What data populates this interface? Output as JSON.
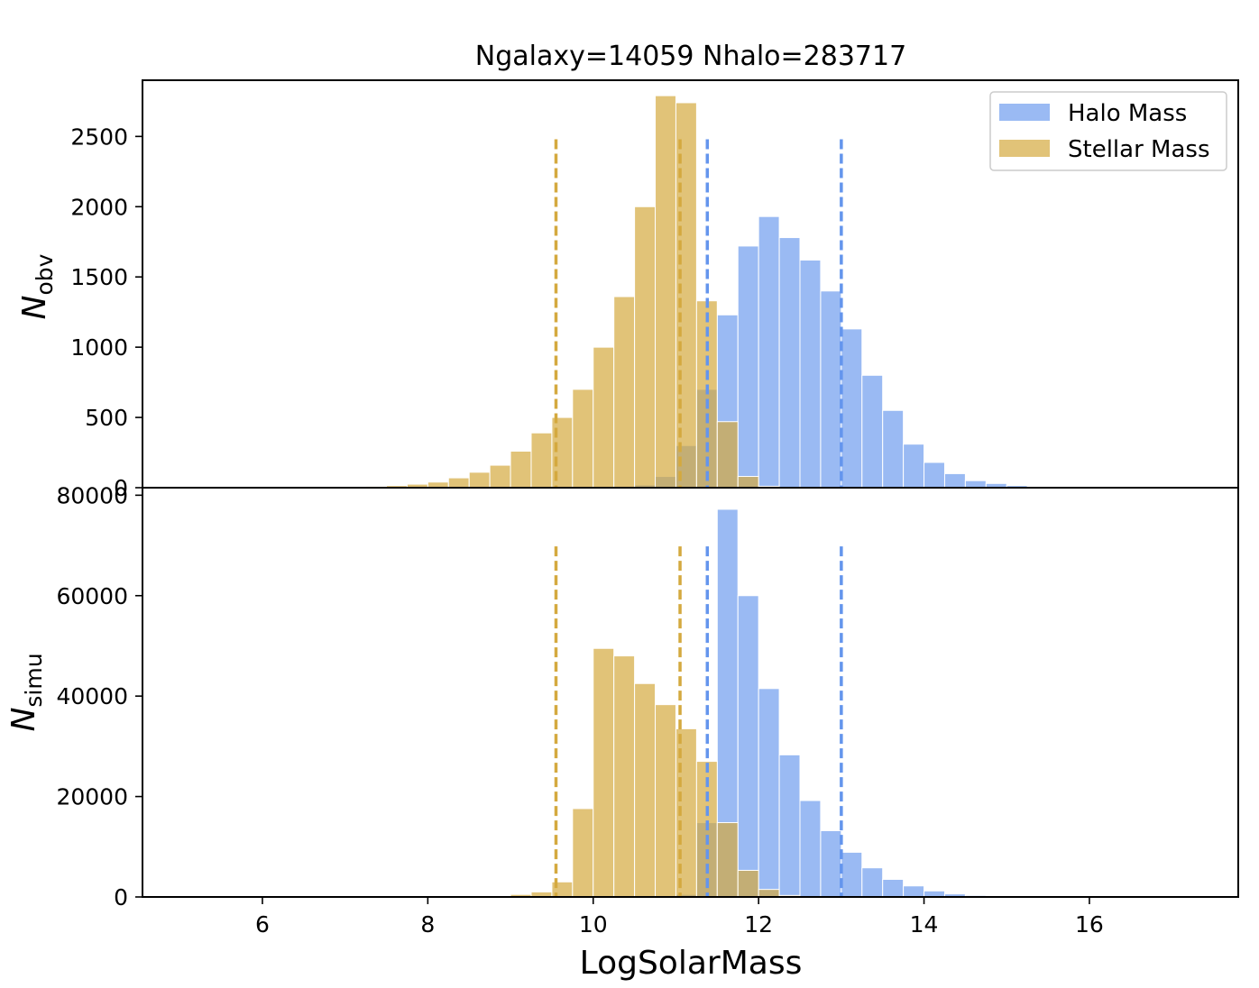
{
  "chart_data": {
    "title": "Ngalaxy=14059 Nhalo=283717",
    "xlabel": "LogSolarMass",
    "xlim": [
      4.55,
      17.8
    ],
    "xticks": [
      "6",
      "8",
      "10",
      "12",
      "14",
      "16"
    ],
    "bin_width": 0.25,
    "legend": {
      "placement": "top-right",
      "entries": [
        "Halo Mass",
        "Stellar Mass"
      ]
    },
    "colors": {
      "halo": "#6495ed",
      "stellar": "#d4a93f",
      "halo_line": "#6495ed",
      "stellar_line": "#d4a93f"
    },
    "vlines": {
      "stellar": [
        9.55,
        11.05
      ],
      "halo": [
        11.38,
        13.0
      ]
    },
    "panels": [
      {
        "type": "bar",
        "ylabel_main": "N",
        "ylabel_sub": "obv",
        "ylim": [
          0,
          2900
        ],
        "yticks": [
          "0",
          "500",
          "1000",
          "1500",
          "2000",
          "2500"
        ],
        "vline_top": 2480,
        "series": [
          {
            "name": "Halo Mass",
            "bins": [
              [
                10.0,
                5
              ],
              [
                10.25,
                10
              ],
              [
                10.5,
                20
              ],
              [
                10.75,
                80
              ],
              [
                11.0,
                300
              ],
              [
                11.25,
                700
              ],
              [
                11.5,
                1230
              ],
              [
                11.75,
                1720
              ],
              [
                12.0,
                1930
              ],
              [
                12.25,
                1780
              ],
              [
                12.5,
                1620
              ],
              [
                12.75,
                1400
              ],
              [
                13.0,
                1130
              ],
              [
                13.25,
                800
              ],
              [
                13.5,
                550
              ],
              [
                13.75,
                310
              ],
              [
                14.0,
                180
              ],
              [
                14.25,
                100
              ],
              [
                14.5,
                50
              ],
              [
                14.75,
                30
              ],
              [
                15.0,
                15
              ],
              [
                15.25,
                8
              ]
            ]
          },
          {
            "name": "Stellar Mass",
            "bins": [
              [
                6.25,
                3
              ],
              [
                6.5,
                5
              ],
              [
                6.75,
                5
              ],
              [
                7.0,
                8
              ],
              [
                7.25,
                10
              ],
              [
                7.5,
                15
              ],
              [
                7.75,
                25
              ],
              [
                8.0,
                40
              ],
              [
                8.25,
                70
              ],
              [
                8.5,
                110
              ],
              [
                8.75,
                160
              ],
              [
                9.0,
                260
              ],
              [
                9.25,
                390
              ],
              [
                9.5,
                500
              ],
              [
                9.75,
                700
              ],
              [
                10.0,
                1000
              ],
              [
                10.25,
                1360
              ],
              [
                10.5,
                2000
              ],
              [
                10.75,
                2790
              ],
              [
                11.0,
                2740
              ],
              [
                11.25,
                1330
              ],
              [
                11.5,
                470
              ],
              [
                11.75,
                80
              ],
              [
                12.0,
                10
              ]
            ]
          }
        ]
      },
      {
        "type": "bar",
        "ylabel_main": "N",
        "ylabel_sub": "simu",
        "ylim": [
          0,
          81500
        ],
        "yticks": [
          "0",
          "20000",
          "40000",
          "60000",
          "80000"
        ],
        "vline_top": 69800,
        "series": [
          {
            "name": "Halo Mass",
            "bins": [
              [
                11.0,
                500
              ],
              [
                11.25,
                14800
              ],
              [
                11.5,
                77200
              ],
              [
                11.75,
                60000
              ],
              [
                12.0,
                41500
              ],
              [
                12.25,
                28300
              ],
              [
                12.5,
                19200
              ],
              [
                12.75,
                13200
              ],
              [
                13.0,
                8900
              ],
              [
                13.25,
                5800
              ],
              [
                13.5,
                3500
              ],
              [
                13.75,
                2200
              ],
              [
                14.0,
                1200
              ],
              [
                14.25,
                600
              ],
              [
                14.5,
                300
              ],
              [
                14.75,
                150
              ],
              [
                15.0,
                60
              ]
            ]
          },
          {
            "name": "Stellar Mass",
            "bins": [
              [
                7.0,
                30
              ],
              [
                7.5,
                60
              ],
              [
                8.0,
                120
              ],
              [
                8.5,
                180
              ],
              [
                8.75,
                200
              ],
              [
                9.0,
                500
              ],
              [
                9.25,
                1000
              ],
              [
                9.5,
                3000
              ],
              [
                9.75,
                17600
              ],
              [
                10.0,
                49500
              ],
              [
                10.25,
                48000
              ],
              [
                10.5,
                42500
              ],
              [
                10.75,
                38300
              ],
              [
                11.0,
                33500
              ],
              [
                11.25,
                27000
              ],
              [
                11.5,
                14800
              ],
              [
                11.75,
                5300
              ],
              [
                12.0,
                1500
              ],
              [
                12.25,
                300
              ]
            ]
          }
        ]
      }
    ]
  }
}
